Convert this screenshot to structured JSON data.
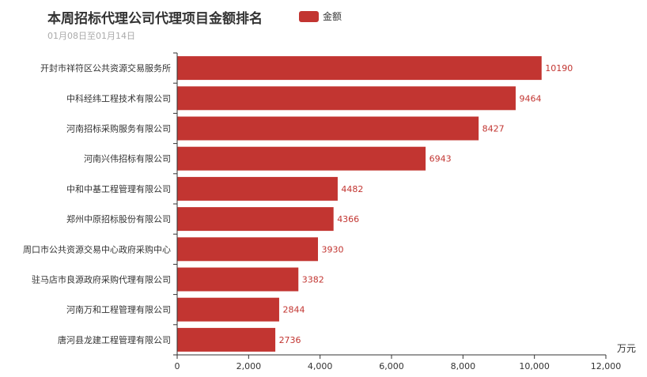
{
  "chart_data": {
    "type": "bar",
    "orientation": "horizontal",
    "title": "本周招标代理公司代理项目金额排名",
    "subtitle": "01月08日至01月14日",
    "unit_label": "万元",
    "legend_position": "top",
    "grid": false,
    "xlim": [
      0,
      12000
    ],
    "x_ticks": [
      "0",
      "2,000",
      "4,000",
      "6,000",
      "8,000",
      "10,000",
      "12,000"
    ],
    "x_tick_values": [
      0,
      2000,
      4000,
      6000,
      8000,
      10000,
      12000
    ],
    "categories": [
      "开封市祥符区公共资源交易服务所",
      "中科经纬工程技术有限公司",
      "河南招标采购服务有限公司",
      "河南兴伟招标有限公司",
      "中和中基工程管理有限公司",
      "郑州中原招标股份有限公司",
      "周口市公共资源交易中心政府采购中心",
      "驻马店市良源政府采购代理有限公司",
      "河南万和工程管理有限公司",
      "唐河县龙建工程管理有限公司"
    ],
    "series": [
      {
        "name": "金额",
        "color": "#c23531",
        "values": [
          10190,
          9464,
          8427,
          6943,
          4482,
          4366,
          3930,
          3382,
          2844,
          2736
        ]
      }
    ]
  }
}
